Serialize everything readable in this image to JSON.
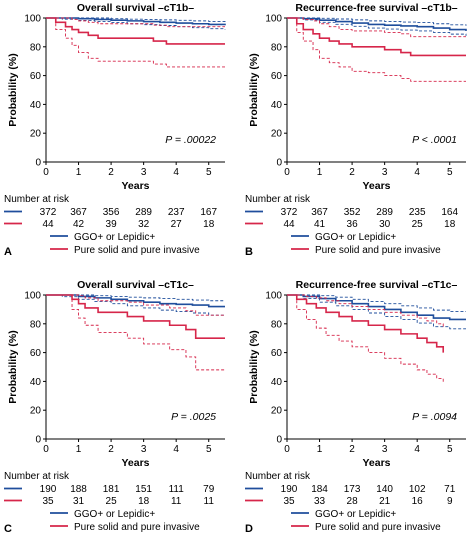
{
  "colors": {
    "blue": "#1f4e9c",
    "red": "#d6264a",
    "axis": "#000000"
  },
  "legend": {
    "series_a": "GGO+ or Lepidic+",
    "series_b": "Pure solid and pure invasive"
  },
  "risk_heading": "Number at risk",
  "chart_data": [
    {
      "panel": "A",
      "type": "line",
      "title": "Overall survival –cT1b–",
      "xlabel": "Years",
      "ylabel": "Probability (%)",
      "xlim": [
        0,
        5.5
      ],
      "ylim": [
        0,
        100
      ],
      "xticks": [
        0,
        1,
        2,
        3,
        4,
        5
      ],
      "yticks": [
        0,
        20,
        40,
        60,
        80,
        100
      ],
      "p_label": "P = .00022",
      "series": [
        {
          "name": "GGO+ or Lepidic+",
          "color": "blue",
          "x": [
            0,
            0.5,
            1,
            1.5,
            2,
            2.5,
            3,
            3.5,
            4,
            4.5,
            5,
            5.5
          ],
          "y": [
            100,
            100,
            99.5,
            99,
            98.5,
            98,
            97.5,
            97,
            96.5,
            96,
            95.5,
            95
          ],
          "ci_upper": [
            100,
            100,
            100,
            100,
            99.5,
            99.2,
            99,
            98.7,
            98.4,
            98,
            97.6,
            97.2
          ],
          "ci_lower": [
            100,
            99.2,
            98.3,
            97.6,
            96.8,
            96,
            95.4,
            94.8,
            94,
            93.3,
            92.6,
            92
          ]
        },
        {
          "name": "Pure solid and pure invasive",
          "color": "red",
          "x": [
            0,
            0.3,
            0.6,
            0.8,
            1.0,
            1.3,
            1.6,
            2.0,
            2.6,
            3.3,
            3.7,
            4.5,
            5.5
          ],
          "y": [
            100,
            97,
            94,
            92,
            90,
            88,
            86,
            86,
            86,
            84,
            82,
            82,
            82
          ],
          "ci_upper": [
            100,
            100,
            100,
            99,
            98,
            97,
            96,
            96,
            96,
            95,
            94,
            94,
            94
          ],
          "ci_lower": [
            100,
            92,
            86,
            81,
            76,
            72,
            70,
            70,
            70,
            68,
            66,
            66,
            66
          ]
        }
      ],
      "risk_table": {
        "times": [
          0,
          1,
          2,
          3,
          4,
          5
        ],
        "rows": [
          {
            "color": "blue",
            "values": [
              "372",
              "367",
              "356",
              "289",
              "237",
              "167"
            ]
          },
          {
            "color": "red",
            "values": [
              "44",
              "42",
              "39",
              "32",
              "27",
              "18"
            ]
          }
        ]
      }
    },
    {
      "panel": "B",
      "type": "line",
      "title": "Recurrence-free survival –cT1b–",
      "xlabel": "Years",
      "ylabel": "Probability (%)",
      "xlim": [
        0,
        5.5
      ],
      "ylim": [
        0,
        100
      ],
      "xticks": [
        0,
        1,
        2,
        3,
        4,
        5
      ],
      "yticks": [
        0,
        20,
        40,
        60,
        80,
        100
      ],
      "p_label": "P < .0001",
      "series": [
        {
          "name": "GGO+ or Lepidic+",
          "color": "blue",
          "x": [
            0,
            0.5,
            1,
            1.5,
            2,
            2.5,
            3,
            3.5,
            4,
            4.5,
            5,
            5.5
          ],
          "y": [
            100,
            99.5,
            98.5,
            97.5,
            96.5,
            95.5,
            95,
            94.5,
            94,
            93,
            92,
            91
          ],
          "ci_upper": [
            100,
            100,
            99.8,
            99.3,
            98.7,
            98,
            97.6,
            97.2,
            96.8,
            96,
            95.3,
            94.6
          ],
          "ci_lower": [
            100,
            98.7,
            97,
            95.6,
            94.2,
            93,
            92.3,
            91.6,
            91,
            90,
            88.8,
            87.6
          ]
        },
        {
          "name": "Pure solid and pure invasive",
          "color": "red",
          "x": [
            0,
            0.3,
            0.5,
            0.8,
            1.0,
            1.3,
            1.6,
            2.0,
            2.5,
            3.0,
            3.5,
            3.8,
            5.5
          ],
          "y": [
            100,
            96,
            92,
            89,
            86,
            84,
            82,
            80,
            80,
            78,
            76,
            74,
            74
          ],
          "ci_upper": [
            100,
            100,
            99,
            98,
            96,
            94,
            92,
            91,
            91,
            90,
            89,
            87,
            87
          ],
          "ci_lower": [
            100,
            90,
            84,
            78,
            72,
            69,
            66,
            63,
            62,
            60,
            58,
            56,
            56
          ]
        }
      ],
      "risk_table": {
        "times": [
          0,
          1,
          2,
          3,
          4,
          5
        ],
        "rows": [
          {
            "color": "blue",
            "values": [
              "372",
              "367",
              "352",
              "289",
              "235",
              "164"
            ]
          },
          {
            "color": "red",
            "values": [
              "44",
              "41",
              "36",
              "30",
              "25",
              "18"
            ]
          }
        ]
      }
    },
    {
      "panel": "C",
      "type": "line",
      "title": "Overall survival –cT1c–",
      "xlabel": "Years",
      "ylabel": "Probability (%)",
      "xlim": [
        0,
        5.5
      ],
      "ylim": [
        0,
        100
      ],
      "xticks": [
        0,
        1,
        2,
        3,
        4,
        5
      ],
      "yticks": [
        0,
        20,
        40,
        60,
        80,
        100
      ],
      "p_label": "P = .0025",
      "series": [
        {
          "name": "GGO+ or Lepidic+",
          "color": "blue",
          "x": [
            0,
            0.5,
            1,
            1.5,
            2,
            2.5,
            3,
            3.5,
            4,
            4.5,
            5,
            5.5
          ],
          "y": [
            100,
            100,
            99,
            98,
            97,
            96,
            95,
            94,
            93.5,
            93,
            92,
            92
          ],
          "ci_upper": [
            100,
            100,
            100,
            99.5,
            99,
            98.5,
            98,
            97.5,
            97,
            96.5,
            96,
            96
          ],
          "ci_lower": [
            100,
            98.8,
            97,
            95.5,
            94,
            92.5,
            91,
            89.5,
            88.5,
            87.5,
            86,
            86
          ]
        },
        {
          "name": "Pure solid and pure invasive",
          "color": "red",
          "x": [
            0,
            0.8,
            1.0,
            1.2,
            1.6,
            2.0,
            2.5,
            3.0,
            3.5,
            3.8,
            4.3,
            4.6,
            5.5
          ],
          "y": [
            100,
            97,
            94,
            91,
            88,
            88,
            85,
            82,
            82,
            79,
            76,
            70,
            70
          ],
          "ci_upper": [
            100,
            100,
            99.5,
            98,
            96,
            96,
            95,
            93,
            93,
            91,
            89,
            86,
            86
          ],
          "ci_lower": [
            100,
            90,
            84,
            79,
            74,
            74,
            70,
            66,
            66,
            62,
            57,
            48,
            48
          ]
        }
      ],
      "risk_table": {
        "times": [
          0,
          1,
          2,
          3,
          4,
          5
        ],
        "rows": [
          {
            "color": "blue",
            "values": [
              "190",
              "188",
              "181",
              "151",
              "111",
              "79"
            ]
          },
          {
            "color": "red",
            "values": [
              "35",
              "31",
              "25",
              "18",
              "11",
              "11"
            ]
          }
        ]
      }
    },
    {
      "panel": "D",
      "type": "line",
      "title": "Recurrence-free survival –cT1c–",
      "xlabel": "Years",
      "ylabel": "Probability (%)",
      "xlim": [
        0,
        5.5
      ],
      "ylim": [
        0,
        100
      ],
      "xticks": [
        0,
        1,
        2,
        3,
        4,
        5
      ],
      "yticks": [
        0,
        20,
        40,
        60,
        80,
        100
      ],
      "p_label": "P = .0094",
      "series": [
        {
          "name": "GGO+ or Lepidic+",
          "color": "blue",
          "x": [
            0,
            0.5,
            1,
            1.5,
            2,
            2.5,
            3,
            3.5,
            4,
            4.5,
            5,
            5.5
          ],
          "y": [
            100,
            99,
            97.5,
            96,
            94,
            92,
            90,
            88,
            86,
            84,
            83,
            83
          ],
          "ci_upper": [
            100,
            100,
            99.5,
            98.5,
            97,
            95.5,
            94,
            92.5,
            91,
            89.5,
            88.5,
            88.5
          ],
          "ci_lower": [
            100,
            97.5,
            95,
            92.5,
            90,
            87.5,
            85,
            83,
            80.5,
            78,
            76.5,
            76.5
          ]
        },
        {
          "name": "Pure solid and pure invasive",
          "color": "red",
          "x": [
            0,
            0.3,
            0.6,
            0.9,
            1.2,
            1.6,
            2.0,
            2.5,
            3.0,
            3.5,
            4.0,
            4.3,
            4.6,
            4.8
          ],
          "y": [
            100,
            97,
            94,
            91,
            88,
            85,
            82,
            79,
            76,
            73,
            70,
            67,
            64,
            60
          ],
          "ci_upper": [
            100,
            100,
            99,
            98,
            96,
            94,
            92,
            90,
            88,
            86,
            84,
            82,
            80,
            78
          ],
          "ci_lower": [
            100,
            90,
            83,
            77,
            72,
            68,
            64,
            60,
            56,
            52,
            48,
            45,
            42,
            39
          ]
        }
      ],
      "risk_table": {
        "times": [
          0,
          1,
          2,
          3,
          4,
          5
        ],
        "rows": [
          {
            "color": "blue",
            "values": [
              "190",
              "184",
              "173",
              "140",
              "102",
              "71"
            ]
          },
          {
            "color": "red",
            "values": [
              "35",
              "33",
              "28",
              "21",
              "16",
              "9"
            ]
          }
        ]
      }
    }
  ]
}
